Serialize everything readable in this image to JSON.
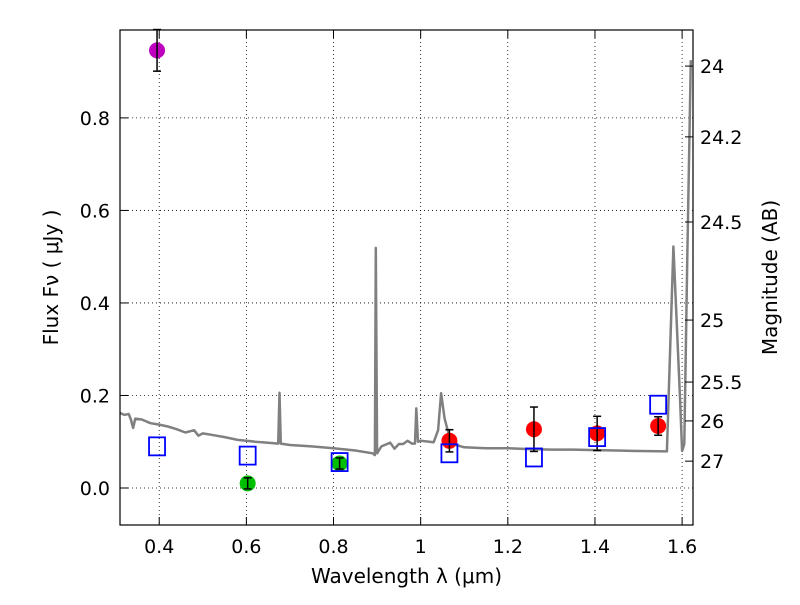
{
  "chart_data": {
    "type": "scatter",
    "xlabel": "Wavelength  λ (μm)",
    "ylabel": "Flux  Fν  ( μJy )",
    "y2label": "Magnitude (AB)",
    "xlim": [
      0.31,
      1.625
    ],
    "ylim": [
      -0.08,
      0.99
    ],
    "grid": true,
    "x_ticks": [
      0.4,
      0.6,
      0.8,
      1.0,
      1.2,
      1.4,
      1.6
    ],
    "x_tick_labels": [
      "0.4",
      "0.6",
      "0.8",
      "1",
      "1.2",
      "1.4",
      "1.6"
    ],
    "y_ticks": [
      0.0,
      0.2,
      0.4,
      0.6,
      0.8
    ],
    "y_tick_labels": [
      "0.0",
      "0.2",
      "0.4",
      "0.6",
      "0.8"
    ],
    "mag_ticks": [
      {
        "label": "24",
        "flux": 0.912
      },
      {
        "label": "24.2",
        "flux": 0.759
      },
      {
        "label": "24.5",
        "flux": 0.575
      },
      {
        "label": "25",
        "flux": 0.363
      },
      {
        "label": "25.5",
        "flux": 0.229
      },
      {
        "label": "26",
        "flux": 0.145
      },
      {
        "label": "27",
        "flux": 0.058
      }
    ],
    "sed_model": {
      "color": "#808080",
      "points": [
        [
          0.31,
          0.162
        ],
        [
          0.32,
          0.158
        ],
        [
          0.33,
          0.16
        ],
        [
          0.335,
          0.148
        ],
        [
          0.34,
          0.13
        ],
        [
          0.345,
          0.15
        ],
        [
          0.36,
          0.148
        ],
        [
          0.38,
          0.14
        ],
        [
          0.4,
          0.137
        ],
        [
          0.42,
          0.133
        ],
        [
          0.44,
          0.127
        ],
        [
          0.46,
          0.12
        ],
        [
          0.48,
          0.125
        ],
        [
          0.49,
          0.113
        ],
        [
          0.5,
          0.118
        ],
        [
          0.52,
          0.115
        ],
        [
          0.55,
          0.11
        ],
        [
          0.58,
          0.104
        ],
        [
          0.6,
          0.102
        ],
        [
          0.62,
          0.1
        ],
        [
          0.65,
          0.098
        ],
        [
          0.673,
          0.096
        ],
        [
          0.676,
          0.206
        ],
        [
          0.679,
          0.096
        ],
        [
          0.7,
          0.093
        ],
        [
          0.75,
          0.09
        ],
        [
          0.8,
          0.086
        ],
        [
          0.85,
          0.081
        ],
        [
          0.89,
          0.075
        ],
        [
          0.895,
          0.071
        ],
        [
          0.897,
          0.519
        ],
        [
          0.9,
          0.075
        ],
        [
          0.91,
          0.09
        ],
        [
          0.93,
          0.098
        ],
        [
          0.94,
          0.085
        ],
        [
          0.95,
          0.095
        ],
        [
          0.96,
          0.095
        ],
        [
          0.97,
          0.102
        ],
        [
          0.98,
          0.096
        ],
        [
          0.987,
          0.096
        ],
        [
          0.99,
          0.172
        ],
        [
          0.994,
          0.1
        ],
        [
          1.0,
          0.102
        ],
        [
          1.03,
          0.099
        ],
        [
          1.04,
          0.125
        ],
        [
          1.047,
          0.205
        ],
        [
          1.055,
          0.15
        ],
        [
          1.07,
          0.096
        ],
        [
          1.1,
          0.088
        ],
        [
          1.15,
          0.086
        ],
        [
          1.2,
          0.086
        ],
        [
          1.25,
          0.084
        ],
        [
          1.3,
          0.083
        ],
        [
          1.35,
          0.083
        ],
        [
          1.4,
          0.082
        ],
        [
          1.45,
          0.081
        ],
        [
          1.5,
          0.08
        ],
        [
          1.565,
          0.079
        ],
        [
          1.58,
          0.522
        ],
        [
          1.595,
          0.2
        ],
        [
          1.6,
          0.08
        ],
        [
          1.605,
          0.095
        ],
        [
          1.612,
          0.5
        ],
        [
          1.62,
          0.925
        ]
      ]
    },
    "series": [
      {
        "marker": "circle",
        "color": "#bf00bf",
        "points": [
          {
            "x": 0.395,
            "y": 0.946,
            "yerr": 0.045
          }
        ]
      },
      {
        "marker": "circle",
        "color": "#00bf00",
        "points": [
          {
            "x": 0.603,
            "y": 0.01,
            "yerr": 0.012
          },
          {
            "x": 0.814,
            "y": 0.053,
            "yerr": 0.012
          }
        ]
      },
      {
        "marker": "circle",
        "color": "#ff0000",
        "points": [
          {
            "x": 1.066,
            "y": 0.102,
            "yerr": 0.024
          },
          {
            "x": 1.26,
            "y": 0.127,
            "yerr": 0.048
          },
          {
            "x": 1.405,
            "y": 0.118,
            "yerr": 0.037
          },
          {
            "x": 1.545,
            "y": 0.134,
            "yerr": 0.02
          }
        ]
      },
      {
        "marker": "open-square",
        "color": "#0000ff",
        "points": [
          {
            "x": 0.395,
            "y": 0.09
          },
          {
            "x": 0.603,
            "y": 0.07
          },
          {
            "x": 0.814,
            "y": 0.056
          },
          {
            "x": 1.066,
            "y": 0.075
          },
          {
            "x": 1.26,
            "y": 0.066
          },
          {
            "x": 1.405,
            "y": 0.11
          },
          {
            "x": 1.545,
            "y": 0.18
          }
        ]
      }
    ]
  }
}
